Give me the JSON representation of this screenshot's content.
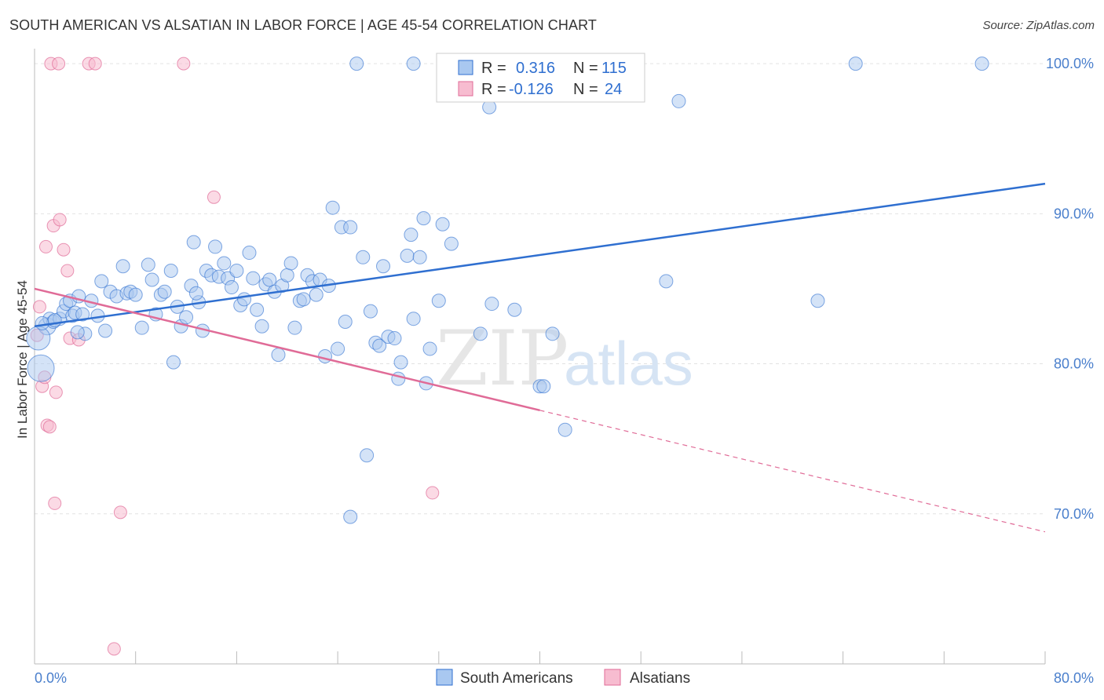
{
  "header": {
    "title": "SOUTH AMERICAN VS ALSATIAN IN LABOR FORCE | AGE 45-54 CORRELATION CHART",
    "source": "Source: ZipAtlas.com"
  },
  "watermark": {
    "zip": "ZIP",
    "atlas": "atlas"
  },
  "legend": {
    "rows": [
      {
        "r_label": "R =",
        "r_value": "0.316",
        "n_label": "N =",
        "n_value": "115",
        "color": "#a9c8f0"
      },
      {
        "r_label": "R =",
        "r_value": "-0.126",
        "n_label": "N =",
        "n_value": "24",
        "color": "#f7bcd0"
      }
    ]
  },
  "bottom_legend": [
    {
      "label": "South Americans",
      "color": "#a9c8f0"
    },
    {
      "label": "Alsatians",
      "color": "#f7bcd0"
    }
  ],
  "chart_data": {
    "type": "scatter",
    "title": "SOUTH AMERICAN VS ALSATIAN IN LABOR FORCE | AGE 45-54 CORRELATION CHART",
    "ylabel": "In Labor Force | Age 45-54",
    "xlabel": "",
    "xlim": [
      0,
      80
    ],
    "ylim": [
      60,
      101
    ],
    "x_tick_labels": [
      "0.0%",
      "80.0%"
    ],
    "y_ticks": [
      {
        "value": 100,
        "label": "100.0%"
      },
      {
        "value": 90,
        "label": "90.0%"
      },
      {
        "value": 80,
        "label": "80.0%"
      },
      {
        "value": 70,
        "label": "70.0%"
      }
    ],
    "grid": true,
    "colors": {
      "south_american": "#2f6fd0",
      "alsatian": "#e06b97"
    },
    "series": [
      {
        "name": "South Americans",
        "r": 0.316,
        "n": 115,
        "trend": {
          "x0": 0,
          "y0": 82.5,
          "x1": 80,
          "y1": 92.0
        },
        "points": [
          [
            0.5,
            79.7
          ],
          [
            1,
            82.5
          ],
          [
            1.2,
            83.0
          ],
          [
            1.5,
            82.8
          ],
          [
            2,
            83.0
          ],
          [
            2.3,
            83.5
          ],
          [
            2.5,
            84.0
          ],
          [
            2.8,
            84.2
          ],
          [
            3,
            83.2
          ],
          [
            3.2,
            83.4
          ],
          [
            3.5,
            84.5
          ],
          [
            3.8,
            83.3
          ],
          [
            4,
            82.0
          ],
          [
            4.5,
            84.2
          ],
          [
            5,
            83.2
          ],
          [
            5.3,
            85.5
          ],
          [
            5.6,
            82.2
          ],
          [
            6,
            84.8
          ],
          [
            6.5,
            84.5
          ],
          [
            7,
            86.5
          ],
          [
            7.3,
            84.7
          ],
          [
            7.6,
            84.8
          ],
          [
            8,
            84.6
          ],
          [
            8.5,
            82.4
          ],
          [
            9,
            86.6
          ],
          [
            9.3,
            85.6
          ],
          [
            9.6,
            83.3
          ],
          [
            10,
            84.6
          ],
          [
            10.3,
            84.8
          ],
          [
            10.8,
            86.2
          ],
          [
            11,
            80.1
          ],
          [
            11.3,
            83.8
          ],
          [
            11.6,
            82.5
          ],
          [
            12,
            83.1
          ],
          [
            12.4,
            85.2
          ],
          [
            12.6,
            88.1
          ],
          [
            13,
            84.1
          ],
          [
            13.3,
            82.2
          ],
          [
            13.6,
            86.2
          ],
          [
            14,
            85.9
          ],
          [
            14.3,
            87.8
          ],
          [
            14.6,
            85.8
          ],
          [
            15,
            86.7
          ],
          [
            15.3,
            85.7
          ],
          [
            15.6,
            85.1
          ],
          [
            16,
            86.2
          ],
          [
            16.3,
            83.9
          ],
          [
            16.6,
            84.3
          ],
          [
            17,
            87.4
          ],
          [
            17.3,
            85.7
          ],
          [
            17.6,
            83.6
          ],
          [
            18,
            82.5
          ],
          [
            18.3,
            85.3
          ],
          [
            18.6,
            85.6
          ],
          [
            19,
            84.8
          ],
          [
            19.3,
            80.6
          ],
          [
            19.6,
            85.2
          ],
          [
            20,
            85.9
          ],
          [
            20.3,
            86.7
          ],
          [
            20.6,
            82.4
          ],
          [
            21,
            84.2
          ],
          [
            21.3,
            84.3
          ],
          [
            21.6,
            85.9
          ],
          [
            22,
            85.5
          ],
          [
            22.3,
            84.6
          ],
          [
            22.6,
            85.6
          ],
          [
            23,
            80.5
          ],
          [
            23.3,
            85.2
          ],
          [
            23.6,
            90.4
          ],
          [
            24,
            81.0
          ],
          [
            24.3,
            89.1
          ],
          [
            24.6,
            82.8
          ],
          [
            25,
            89.1
          ],
          [
            25,
            69.8
          ],
          [
            25.5,
            100.0
          ],
          [
            26,
            87.1
          ],
          [
            26.3,
            73.9
          ],
          [
            26.6,
            83.5
          ],
          [
            27,
            81.4
          ],
          [
            27.3,
            81.2
          ],
          [
            27.6,
            86.5
          ],
          [
            28,
            81.8
          ],
          [
            28.5,
            81.7
          ],
          [
            28.8,
            79.0
          ],
          [
            29,
            80.1
          ],
          [
            29.5,
            87.2
          ],
          [
            29.8,
            88.6
          ],
          [
            30,
            83.0
          ],
          [
            30,
            100.0
          ],
          [
            30.5,
            87.1
          ],
          [
            30.8,
            89.7
          ],
          [
            31,
            78.7
          ],
          [
            31.3,
            81.0
          ],
          [
            32,
            84.2
          ],
          [
            32.3,
            89.3
          ],
          [
            33,
            88.0
          ],
          [
            35,
            100.0
          ],
          [
            35.3,
            82.0
          ],
          [
            36,
            97.1
          ],
          [
            36.2,
            84.0
          ],
          [
            38,
            83.6
          ],
          [
            40,
            78.5
          ],
          [
            40.3,
            78.5
          ],
          [
            41,
            82.0
          ],
          [
            42,
            75.6
          ],
          [
            50,
            85.5
          ],
          [
            51,
            97.5
          ],
          [
            62,
            84.2
          ],
          [
            65,
            100.0
          ],
          [
            75,
            100.0
          ],
          [
            0.3,
            81.7
          ],
          [
            0.6,
            82.7
          ],
          [
            1.6,
            82.9
          ],
          [
            3.4,
            82.1
          ],
          [
            12.8,
            84.7
          ]
        ]
      },
      {
        "name": "Alsatians",
        "r": -0.126,
        "n": 24,
        "trend": {
          "x0": 0,
          "y0": 85.0,
          "x1": 40,
          "y1": 76.9,
          "x2": 80,
          "y2": 68.8
        },
        "points": [
          [
            0.2,
            81.9
          ],
          [
            0.4,
            83.8
          ],
          [
            0.6,
            78.5
          ],
          [
            0.8,
            79.1
          ],
          [
            0.9,
            87.8
          ],
          [
            1,
            75.9
          ],
          [
            1.2,
            75.8
          ],
          [
            1.3,
            100.0
          ],
          [
            1.5,
            89.2
          ],
          [
            1.6,
            70.7
          ],
          [
            1.7,
            78.1
          ],
          [
            1.9,
            100.0
          ],
          [
            2,
            89.6
          ],
          [
            2.3,
            87.6
          ],
          [
            2.6,
            86.2
          ],
          [
            2.8,
            81.7
          ],
          [
            3.5,
            81.6
          ],
          [
            4.3,
            100.0
          ],
          [
            4.8,
            100.0
          ],
          [
            6.3,
            61.0
          ],
          [
            6.8,
            70.1
          ],
          [
            11.8,
            100.0
          ],
          [
            14.2,
            91.1
          ],
          [
            31.5,
            71.4
          ]
        ]
      }
    ]
  }
}
